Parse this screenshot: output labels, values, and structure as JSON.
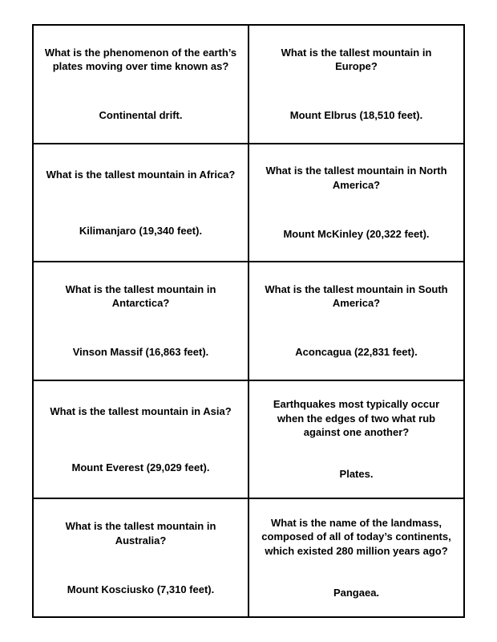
{
  "document": {
    "type": "table",
    "columns": 2,
    "rows": 5,
    "background_color": "#ffffff",
    "border_color": "#000000",
    "border_width": 2,
    "text_color": "#000000",
    "font_family": "Arial",
    "font_weight": "bold",
    "question_fontsize": 13,
    "answer_fontsize": 13,
    "cards": [
      [
        {
          "question": "What is the phenomenon of the earth’s plates moving over time known as?",
          "answer": "Continental drift."
        },
        {
          "question": "What is the tallest mountain in Europe?",
          "answer": "Mount Elbrus (18,510 feet)."
        }
      ],
      [
        {
          "question": "What is the tallest mountain in Africa?",
          "answer": "Kilimanjaro (19,340 feet)."
        },
        {
          "question": "What is the tallest mountain in North America?",
          "answer": "Mount McKinley (20,322 feet)."
        }
      ],
      [
        {
          "question": "What is the tallest mountain in Antarctica?",
          "answer": "Vinson Massif (16,863 feet)."
        },
        {
          "question": "What is the tallest mountain in South America?",
          "answer": "Aconcagua (22,831 feet)."
        }
      ],
      [
        {
          "question": "What is the tallest mountain in Asia?",
          "answer": "Mount Everest (29,029 feet)."
        },
        {
          "question": "Earthquakes most typically occur when the edges of two what rub against one another?",
          "answer": "Plates."
        }
      ],
      [
        {
          "question": "What is the tallest mountain in Australia?",
          "answer": "Mount Kosciusko (7,310 feet)."
        },
        {
          "question": "What is the name of the landmass, composed of all of today’s continents, which existed 280 million years ago?",
          "answer": "Pangaea."
        }
      ]
    ]
  }
}
